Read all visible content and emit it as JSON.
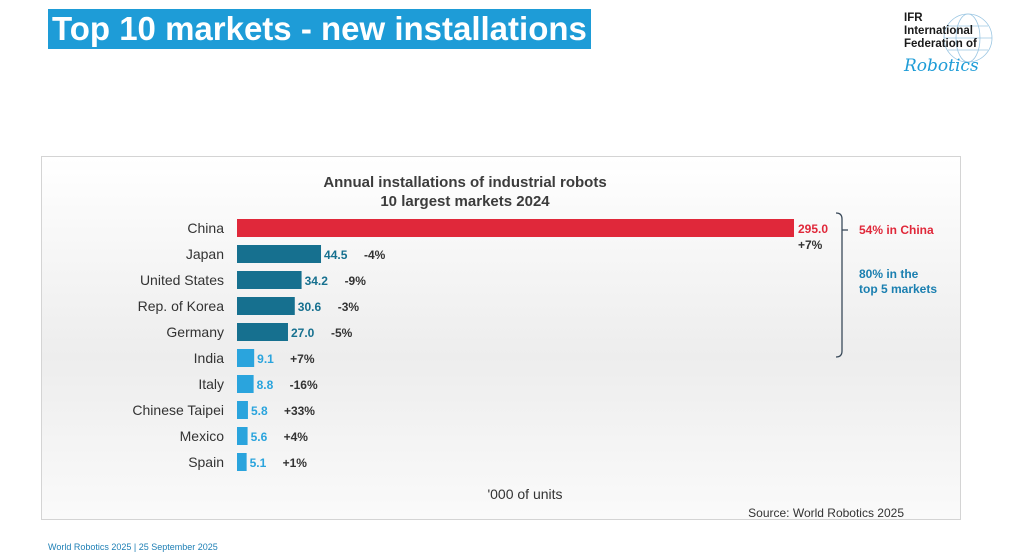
{
  "slide": {
    "title": "Top 10 markets - new installations",
    "footer": "World Robotics 2025  | 25 September 2025"
  },
  "logo": {
    "lines": [
      "IFR",
      "International",
      "Federation of"
    ],
    "script": "Robotics"
  },
  "colors": {
    "title_bg": "#1e9cd7",
    "china": "#e0283a",
    "top5": "#16708f",
    "others": "#2aa4dd",
    "annotation_blue": "#1a7fb0"
  },
  "chart_data": {
    "type": "bar",
    "orientation": "horizontal",
    "title": "Annual installations of industrial robots",
    "subtitle": "10 largest markets 2024",
    "xlabel": "'000 of units",
    "source": "Source: World Robotics 2025",
    "categories": [
      "China",
      "Japan",
      "United States",
      "Rep. of Korea",
      "Germany",
      "India",
      "Italy",
      "Chinese Taipei",
      "Mexico",
      "Spain"
    ],
    "values": [
      295.0,
      44.5,
      34.2,
      30.6,
      27.0,
      9.1,
      8.8,
      5.8,
      5.6,
      5.1
    ],
    "value_labels": [
      "295.0",
      "44.5",
      "34.2",
      "30.6",
      "27.0",
      "9.1",
      "8.8",
      "5.8",
      "5.6",
      "5.1"
    ],
    "changes": [
      "+7%",
      "-4%",
      "-9%",
      "-3%",
      "-5%",
      "+7%",
      "-16%",
      "+33%",
      "+4%",
      "+1%"
    ],
    "xlim": [
      0,
      295
    ],
    "grid": false,
    "annotations": [
      {
        "text": "54% in China",
        "rows": [
          0,
          0
        ]
      },
      {
        "text": "80% in the top 5 markets",
        "rows": [
          0,
          4
        ]
      }
    ]
  }
}
